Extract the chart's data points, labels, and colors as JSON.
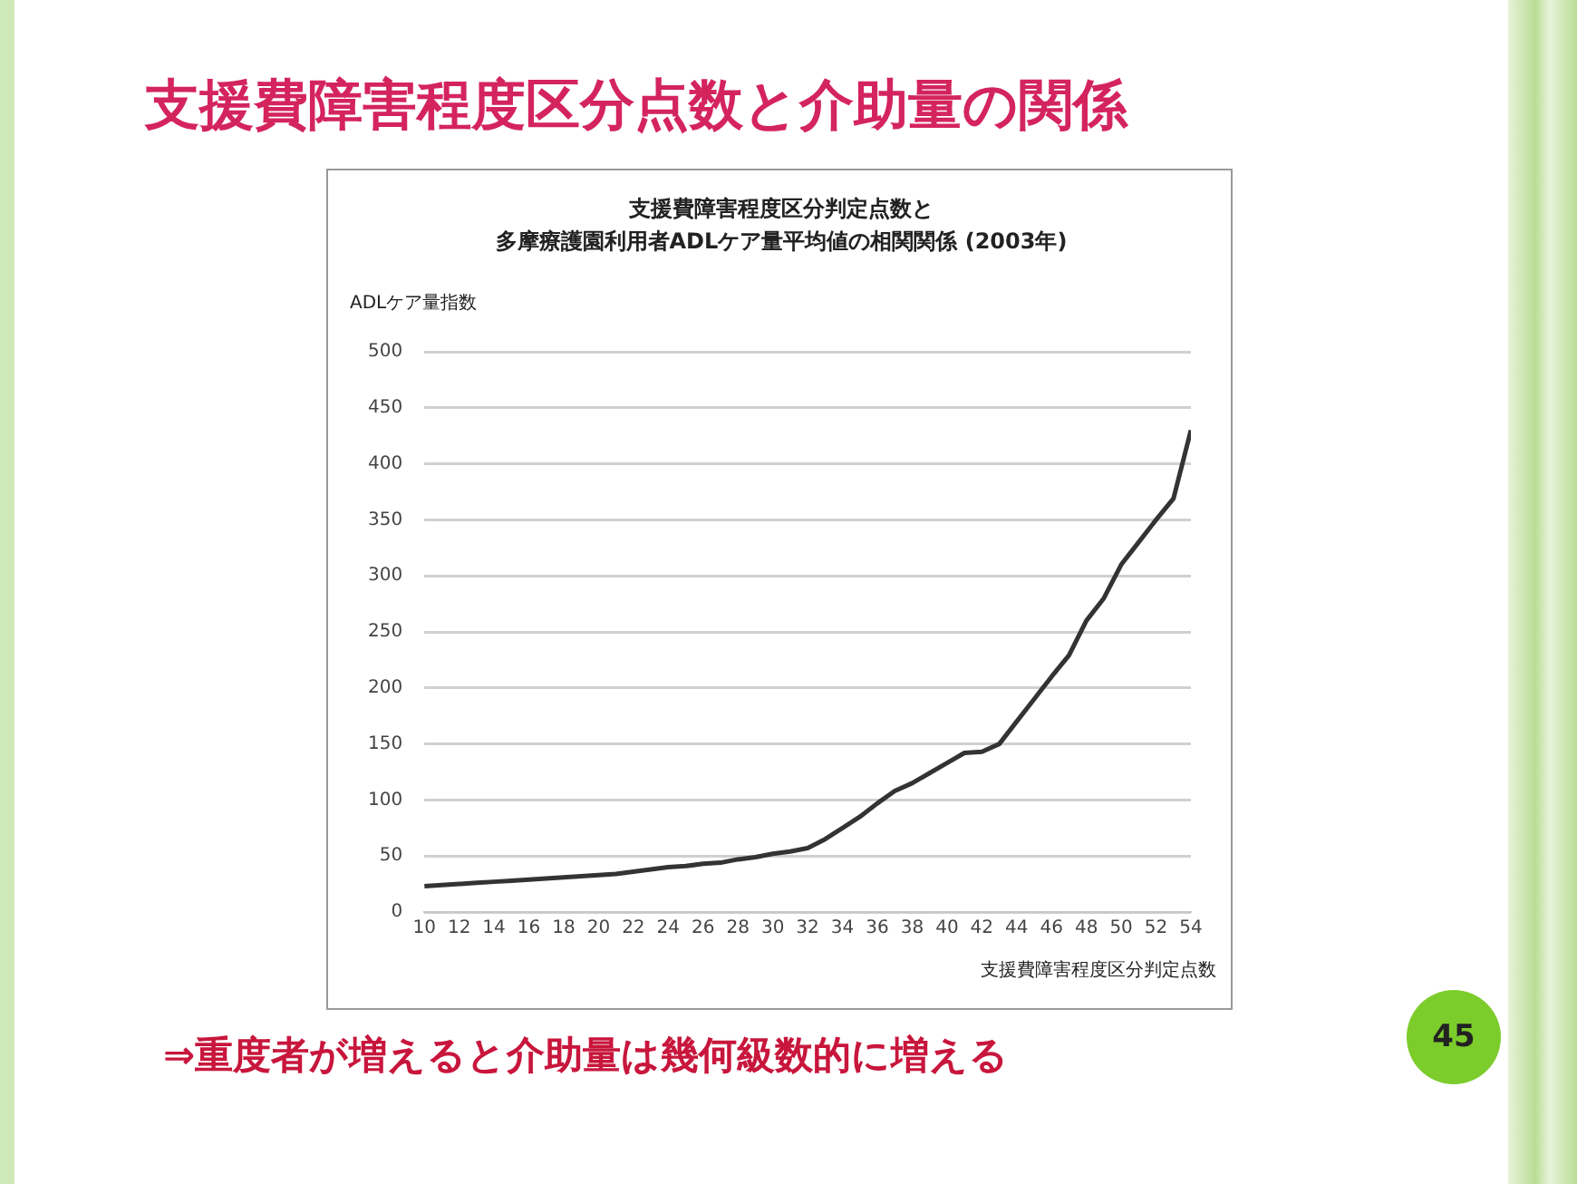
{
  "chart_data": {
    "type": "line",
    "title": "支援費障害程度区分判定点数と",
    "subtitle": "多摩療護園利用者ADLケア量平均値の相関関係 (2003年)",
    "xlabel": "支援費障害程度区分判定点数",
    "ylabel": "ADLケア量指数",
    "x": [
      10,
      11,
      12,
      13,
      14,
      15,
      16,
      17,
      18,
      19,
      20,
      21,
      22,
      23,
      24,
      25,
      26,
      27,
      28,
      29,
      30,
      31,
      32,
      33,
      34,
      35,
      36,
      37,
      38,
      39,
      40,
      41,
      42,
      43,
      44,
      45,
      46,
      47,
      48,
      49,
      50,
      51,
      52,
      53,
      54
    ],
    "series": [
      {
        "color": "#333333",
        "values": [
          23,
          24,
          25,
          26,
          27,
          28,
          29,
          30,
          31,
          32,
          33,
          34,
          36,
          38,
          40,
          41,
          43,
          44,
          47,
          49,
          52,
          54,
          57,
          65,
          75,
          85,
          97,
          108,
          115,
          124,
          133,
          142,
          143,
          150,
          170,
          190,
          210,
          229,
          260,
          280,
          310,
          330,
          350,
          369,
          430
        ]
      }
    ],
    "xlim": [
      10,
      54
    ],
    "xticks": [
      10,
      12,
      14,
      16,
      18,
      20,
      22,
      24,
      26,
      28,
      30,
      32,
      34,
      36,
      38,
      40,
      42,
      44,
      46,
      48,
      50,
      52,
      54
    ],
    "ylim": [
      0,
      500
    ],
    "yticks": [
      0,
      50,
      100,
      150,
      200,
      250,
      300,
      350,
      400,
      450,
      500
    ],
    "grid": "y",
    "legend": false,
    "marker": "none",
    "line_style": "solid",
    "annotations": [
      "支援費障害程度区分点数と介助量の関係",
      "⇒重度者が増えると介助量は幾何級数的に増える",
      "45"
    ]
  }
}
